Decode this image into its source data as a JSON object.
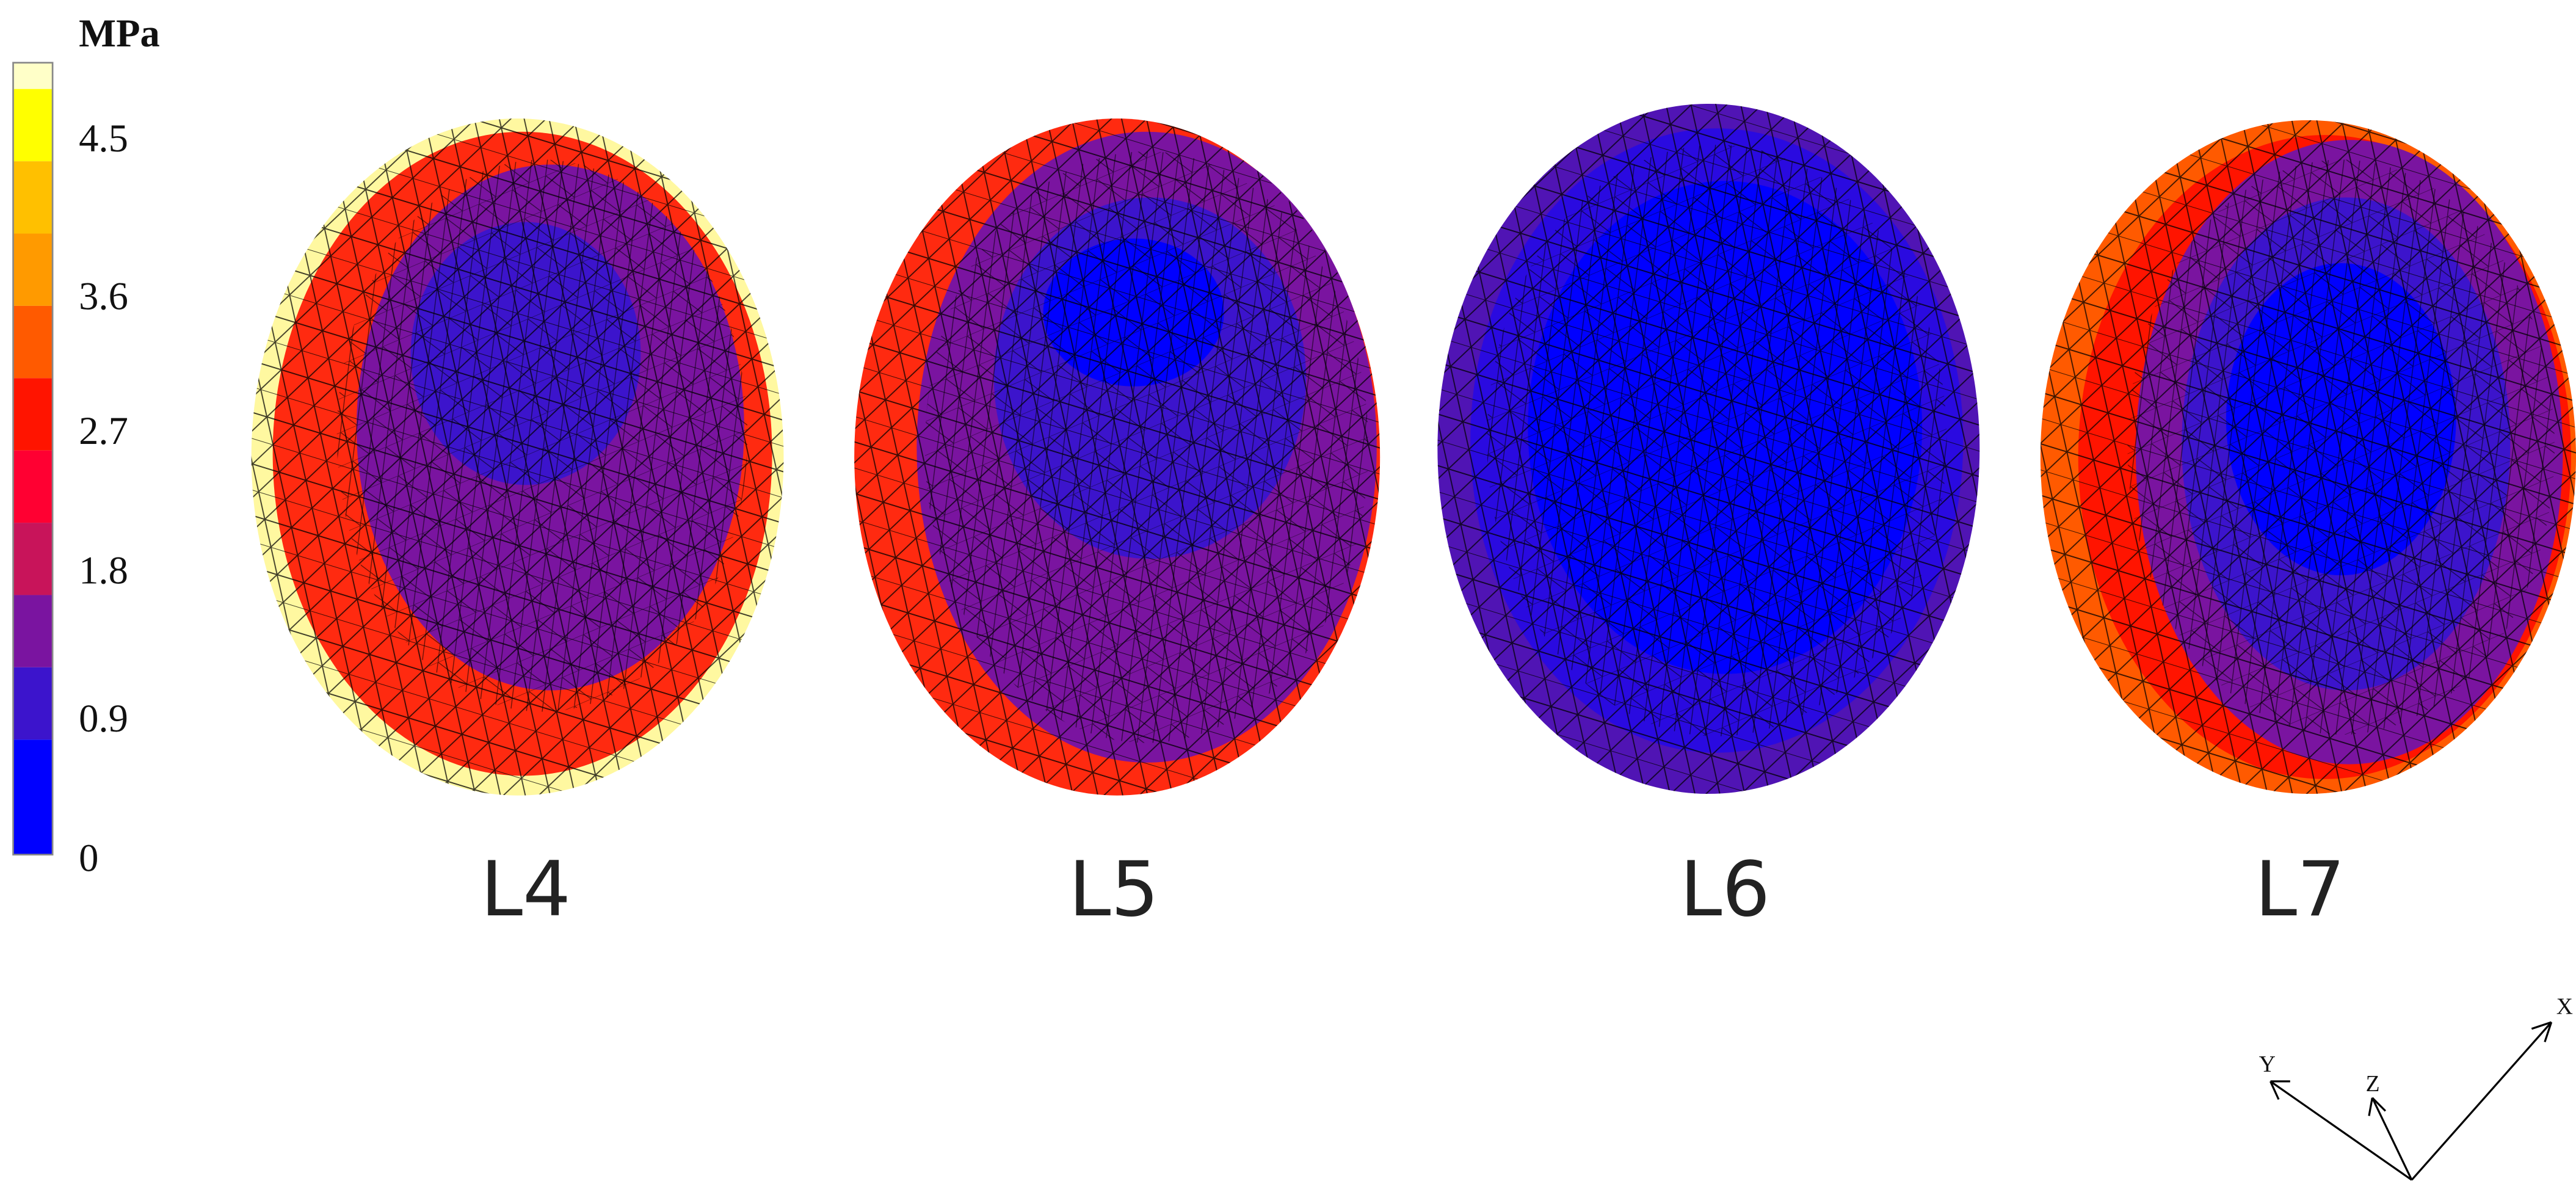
{
  "colorbar": {
    "unit": "MPa",
    "ticks": [
      "4.5",
      "3.6",
      "2.7",
      "1.8",
      "0.9",
      "0"
    ]
  },
  "panels": [
    {
      "label": "L4"
    },
    {
      "label": "L5"
    },
    {
      "label": "L6"
    },
    {
      "label": "L7"
    }
  ],
  "axes": {
    "x": "X",
    "y": "Y",
    "z": "Z"
  }
}
